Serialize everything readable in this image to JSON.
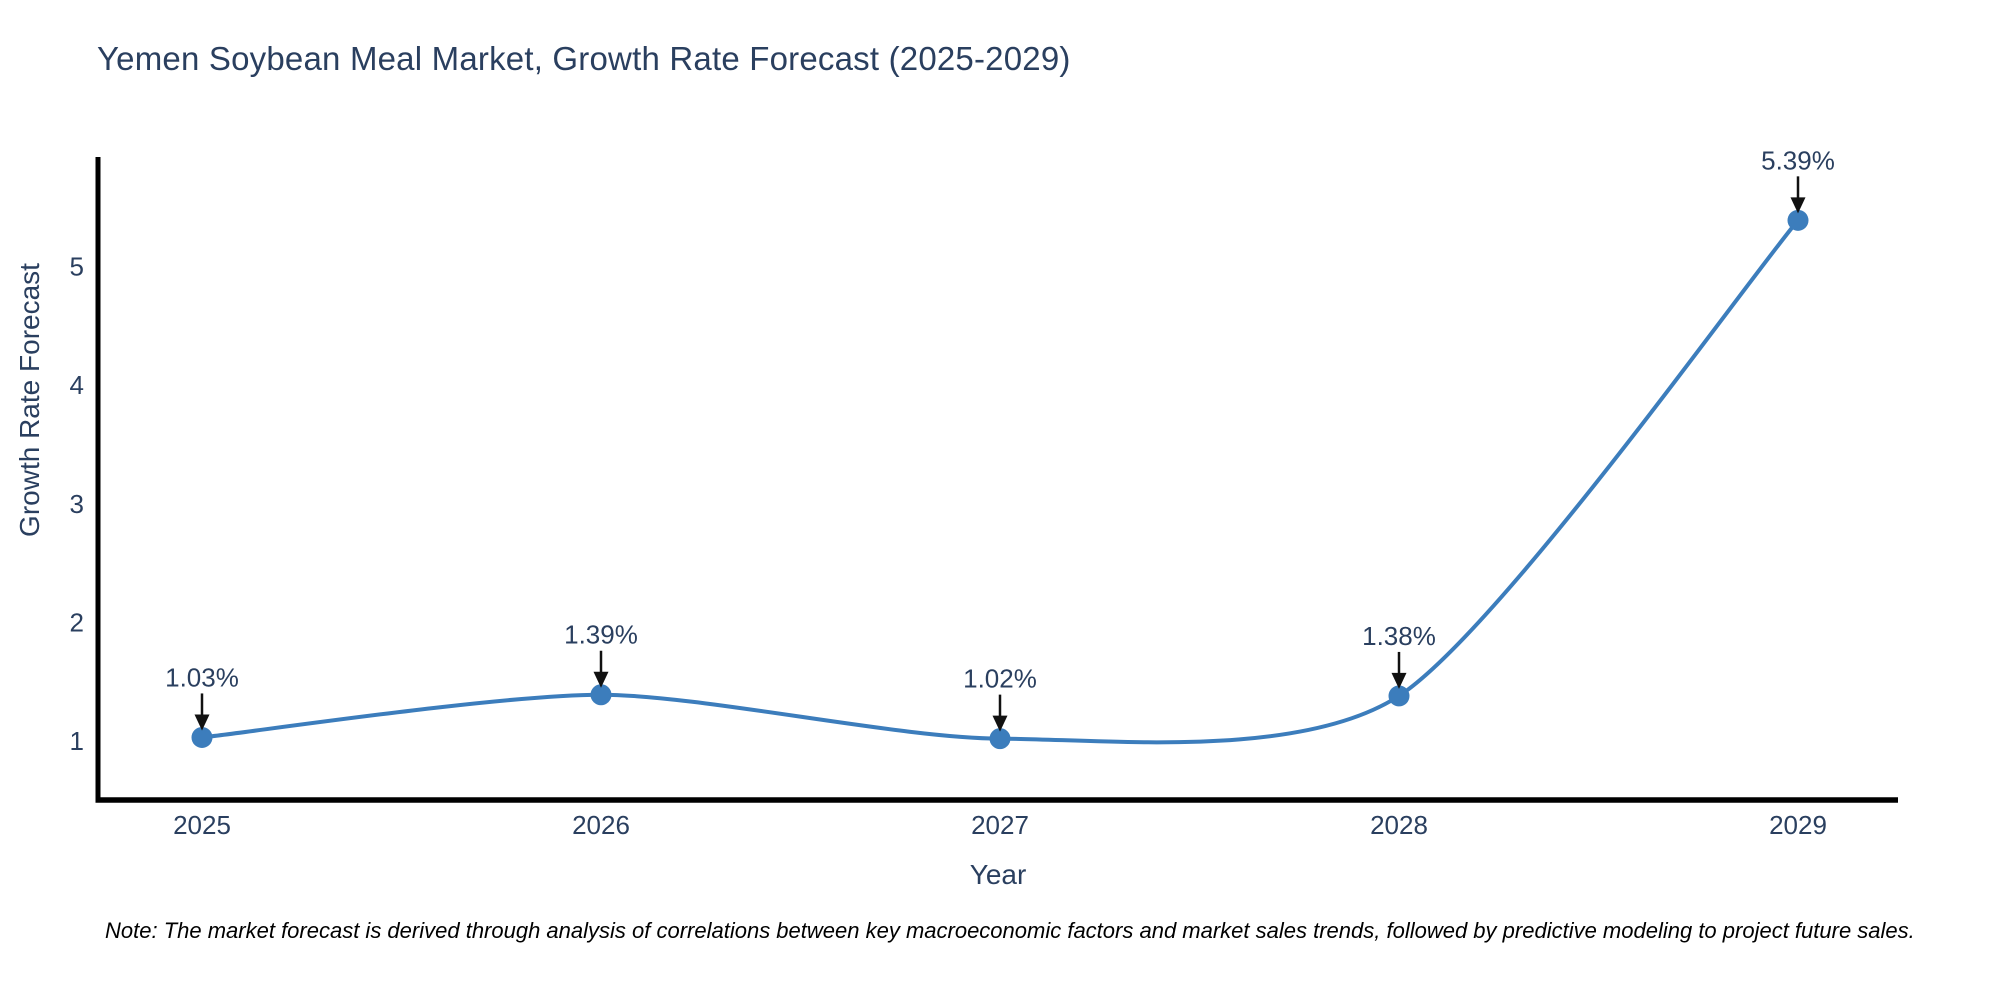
{
  "header": {
    "title": "Yemen Soybean Meal Market, Growth Rate Forecast (2025-2029)"
  },
  "footer": {
    "note": "Note: The market forecast is derived through analysis of correlations between key macroeconomic factors and market sales trends, followed by predictive modeling to project future sales."
  },
  "chart_data": {
    "type": "line",
    "curve": "spline",
    "title": "Yemen Soybean Meal Market, Growth Rate Forecast (2025-2029)",
    "xlabel": "Year",
    "ylabel": "Growth Rate Forecast",
    "categories": [
      "2025",
      "2026",
      "2027",
      "2028",
      "2029"
    ],
    "series": [
      {
        "name": "Growth Rate Forecast",
        "values": [
          1.03,
          1.39,
          1.02,
          1.38,
          5.39
        ]
      }
    ],
    "point_labels": [
      "1.03%",
      "1.39%",
      "1.02%",
      "1.38%",
      "5.39%"
    ],
    "yticks": [
      1,
      2,
      3,
      4,
      5
    ],
    "ylim": [
      0.5,
      5.9
    ],
    "grid": false,
    "legend": "none",
    "line_color": "#3c7dbc",
    "marker_color": "#3c7dbc",
    "axis_color": "#000000",
    "tick_color": "#2a3f5f",
    "annotation_text_color": "#2a3f5f",
    "annotation_arrow_color": "#111111"
  }
}
